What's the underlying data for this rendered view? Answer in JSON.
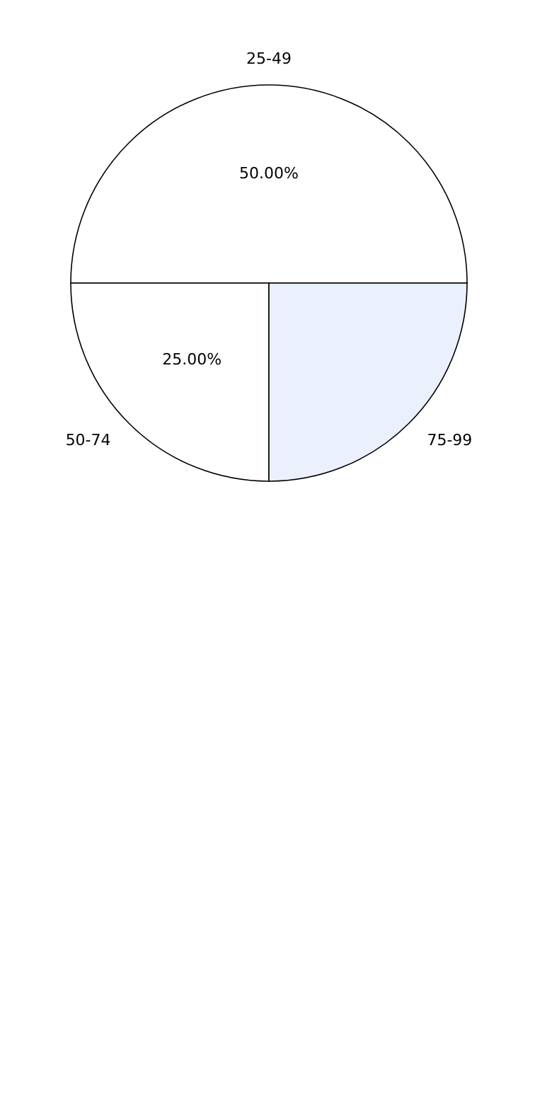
{
  "chart_data": {
    "type": "pie",
    "categories": [
      "25-49",
      "50-74",
      "75-99"
    ],
    "values": [
      50,
      25,
      25
    ],
    "colors": [
      "#ffffff",
      "#ffffff",
      "#eaf0fc"
    ],
    "value_labels": [
      "50.00%",
      "25.00%",
      null
    ]
  }
}
